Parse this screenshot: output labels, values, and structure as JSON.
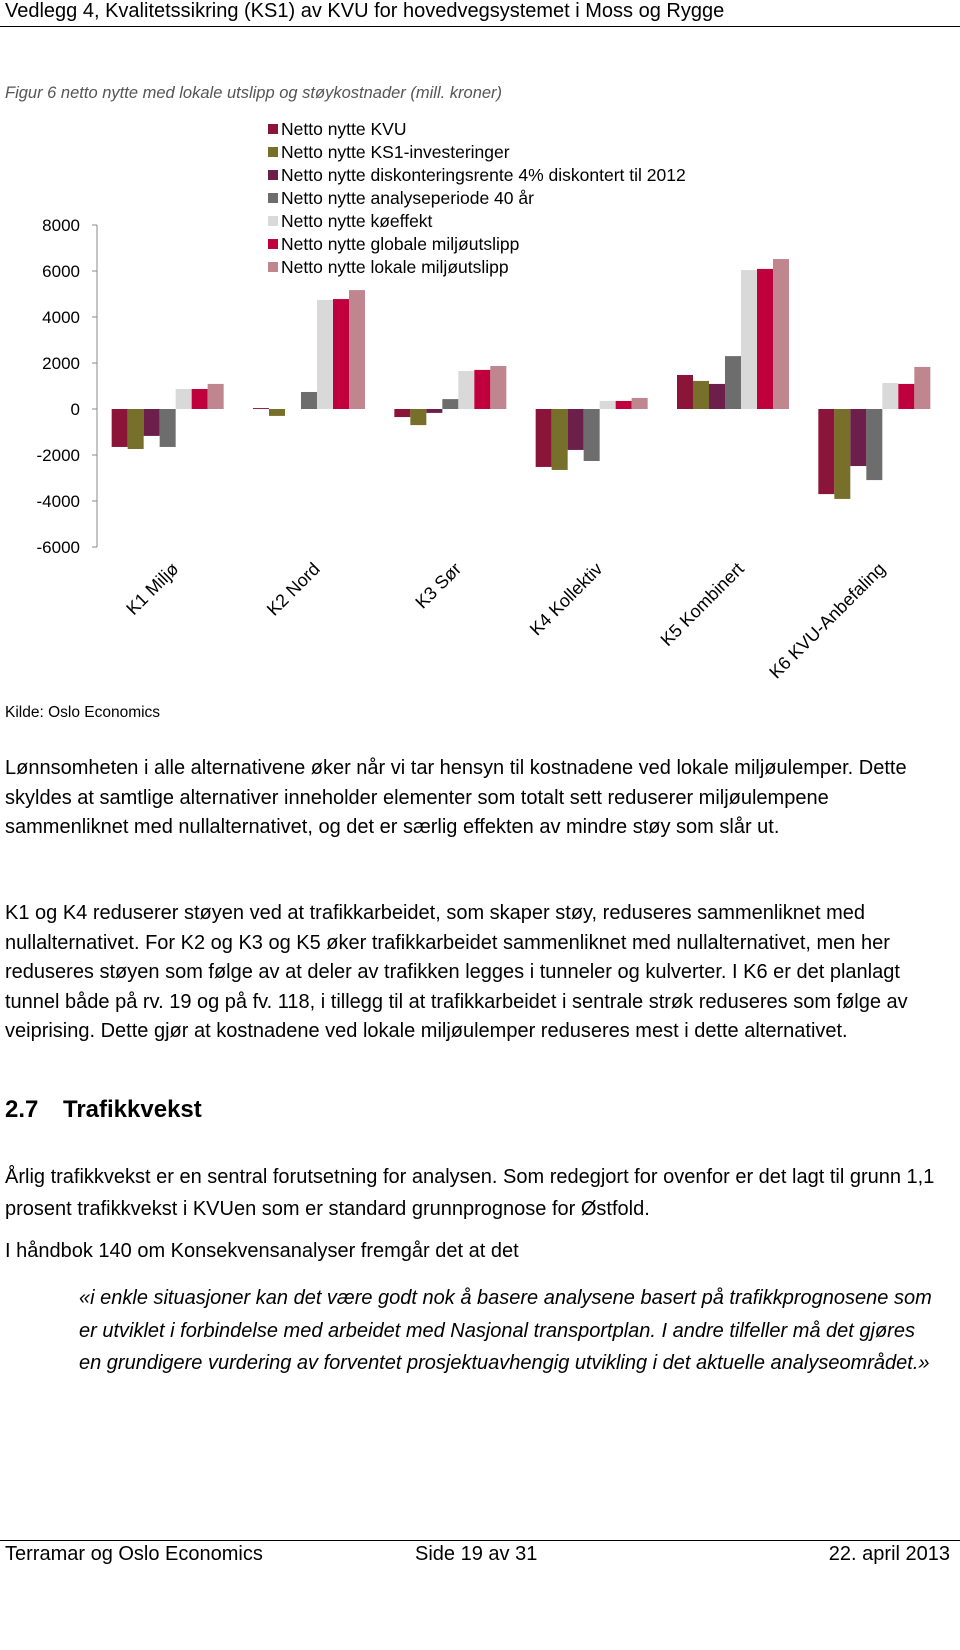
{
  "header": {
    "title": "Vedlegg 4, Kvalitetssikring (KS1) av KVU for hovedvegsystemet i Moss og Rygge"
  },
  "figure": {
    "caption": "Figur 6 netto nytte med lokale utslipp og støykostnader (mill. kroner)",
    "source": "Kilde: Oslo Economics"
  },
  "chart_data": {
    "type": "bar",
    "categories": [
      "K1 Miljø",
      "K2 Nord",
      "K3 Sør",
      "K4 Kollektiv",
      "K5 Kombinert",
      "K6 KVU-Anbefaling"
    ],
    "series": [
      {
        "name": "Netto nytte KVU",
        "color": "#8b1538",
        "values": [
          -1650,
          40,
          -350,
          -2520,
          1480,
          -3700
        ]
      },
      {
        "name": "Netto nytte KS1-investeringer",
        "color": "#76702a",
        "values": [
          -1740,
          -300,
          -700,
          -2650,
          1220,
          -3910
        ]
      },
      {
        "name": "Netto nytte diskonteringsrente 4% diskontert til 2012",
        "color": "#6b1f4a",
        "values": [
          -1170,
          0,
          -170,
          -1780,
          1090,
          -2480
        ]
      },
      {
        "name": "Netto nytte analyseperiode 40 år",
        "color": "#6d6d6d",
        "values": [
          -1650,
          740,
          430,
          -2260,
          2300,
          -3090
        ]
      },
      {
        "name": "Netto nytte køeffekt",
        "color": "#d9d9d9",
        "values": [
          870,
          4740,
          1650,
          350,
          6040,
          1130
        ]
      },
      {
        "name": "Netto nytte globale miljøutslipp",
        "color": "#c0003c",
        "values": [
          870,
          4780,
          1700,
          350,
          6090,
          1090
        ]
      },
      {
        "name": "Netto nytte lokale miljøutslipp",
        "color": "#c0868f",
        "values": [
          1090,
          5170,
          1870,
          480,
          6520,
          1830
        ]
      }
    ],
    "ylim": [
      -6000,
      8000
    ],
    "yticks": [
      -6000,
      -4000,
      -2000,
      0,
      2000,
      4000,
      6000,
      8000
    ],
    "grid": false
  },
  "body": {
    "paragraphs": [
      "Lønnsomheten i alle alternativene øker når vi tar hensyn til kostnadene ved lokale miljøulemper. Dette skyldes at samtlige alternativer inneholder elementer som totalt sett reduserer miljøulempene sammenliknet med nullalternativet, og det er særlig effekten av mindre støy som slår ut.",
      "K1 og K4 reduserer støyen ved at trafikkarbeidet, som skaper støy, reduseres sammenliknet med nullalternativet. For K2 og K3 og K5 øker trafikkarbeidet sammenliknet med nullalternativet, men her reduseres støyen som følge av at deler av trafikken legges i tunneler og kulverter. I K6 er det planlagt tunnel både på rv. 19 og på fv. 118, i tillegg til at trafikkarbeidet i sentrale strøk reduseres som følge av veiprising. Dette gjør at kostnadene ved lokale miljøulemper reduseres mest i dette alternativet."
    ],
    "section": {
      "number": "2.7",
      "title": "Trafikkvekst"
    },
    "paragraphs2": [
      "Årlig trafikkvekst er en sentral forutsetning for analysen. Som redegjort for ovenfor er det lagt til grunn 1,1 prosent trafikkvekst i KVUen som er standard grunnprognose for Østfold.",
      "I håndbok 140 om Konsekvensanalyser fremgår det at det"
    ],
    "quote": "«i enkle situasjoner kan det være godt nok å basere analysene basert på trafikkprognosene som er utviklet i forbindelse med arbeidet med Nasjonal transportplan. I andre tilfeller må det gjøres en grundigere vurdering av forventet prosjektuavhengig utvikling i det aktuelle analyseområdet.»"
  },
  "footer": {
    "left": "Terramar og Oslo Economics",
    "center": "Side 19 av 31",
    "right": "22. april 2013"
  }
}
